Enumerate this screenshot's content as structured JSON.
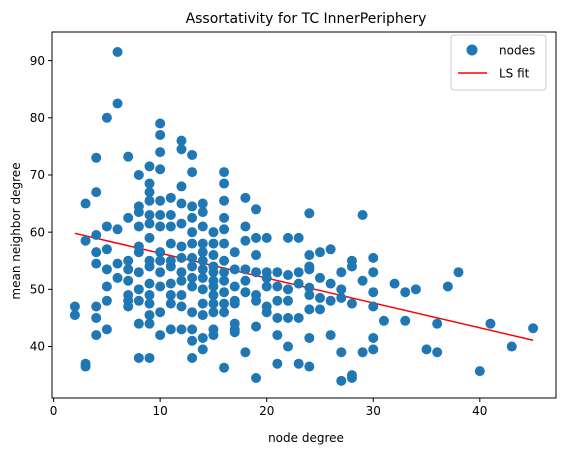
{
  "chart_data": {
    "type": "scatter",
    "title": "Assortativity for TC InnerPeriphery",
    "xlabel": "node degree",
    "ylabel": "mean neighbor degree",
    "xlim": [
      -0.15,
      47.15
    ],
    "ylim": [
      31,
      95
    ],
    "xticks": [
      0,
      10,
      20,
      30,
      40
    ],
    "yticks": [
      40,
      50,
      60,
      70,
      80,
      90
    ],
    "grid": false,
    "legend_position": "top-right",
    "colors": {
      "points": "#1f77b4",
      "fit": "#ff0000",
      "axis": "#000000"
    },
    "series": [
      {
        "name": "nodes",
        "type": "scatter",
        "points": [
          [
            2,
            47
          ],
          [
            2,
            45.5
          ],
          [
            3,
            65
          ],
          [
            3,
            58.5
          ],
          [
            3,
            37
          ],
          [
            3,
            36.5
          ],
          [
            4,
            73
          ],
          [
            4,
            67
          ],
          [
            4,
            59.5
          ],
          [
            4,
            56.5
          ],
          [
            4,
            54.5
          ],
          [
            4,
            47
          ],
          [
            4,
            45
          ],
          [
            4,
            42
          ],
          [
            5,
            80
          ],
          [
            5,
            61
          ],
          [
            5,
            57
          ],
          [
            5,
            53.5
          ],
          [
            5,
            50.5
          ],
          [
            5,
            48
          ],
          [
            5,
            43
          ],
          [
            6,
            91.5
          ],
          [
            6,
            82.5
          ],
          [
            6,
            60.5
          ],
          [
            6,
            54.5
          ],
          [
            6,
            52
          ],
          [
            7,
            73.2
          ],
          [
            7,
            62.5
          ],
          [
            7,
            55
          ],
          [
            7,
            53.5
          ],
          [
            7,
            51.5
          ],
          [
            7,
            49
          ],
          [
            7,
            48
          ],
          [
            7,
            47
          ],
          [
            8,
            70
          ],
          [
            8,
            64.5
          ],
          [
            8,
            63.5
          ],
          [
            8,
            61
          ],
          [
            8,
            57.5
          ],
          [
            8,
            56.5
          ],
          [
            8,
            53
          ],
          [
            8,
            50
          ],
          [
            8,
            48
          ],
          [
            8,
            44
          ],
          [
            8,
            38
          ],
          [
            9,
            71.5
          ],
          [
            9,
            68.5
          ],
          [
            9,
            67
          ],
          [
            9,
            65.5
          ],
          [
            9,
            63
          ],
          [
            9,
            61.5
          ],
          [
            9,
            59
          ],
          [
            9,
            55
          ],
          [
            9,
            54
          ],
          [
            9,
            51
          ],
          [
            9,
            49
          ],
          [
            9,
            47.5
          ],
          [
            9,
            45.5
          ],
          [
            9,
            44
          ],
          [
            9,
            38
          ],
          [
            10,
            79
          ],
          [
            10,
            77
          ],
          [
            10,
            74
          ],
          [
            10,
            71
          ],
          [
            10,
            65.5
          ],
          [
            10,
            63
          ],
          [
            10,
            61
          ],
          [
            10,
            56.5
          ],
          [
            10,
            55
          ],
          [
            10,
            53
          ],
          [
            10,
            50.5
          ],
          [
            10,
            46
          ],
          [
            10,
            42
          ],
          [
            11,
            66
          ],
          [
            11,
            63
          ],
          [
            11,
            61
          ],
          [
            11,
            58
          ],
          [
            11,
            55
          ],
          [
            11,
            54
          ],
          [
            11,
            51
          ],
          [
            11,
            49
          ],
          [
            11,
            47.5
          ],
          [
            11,
            43
          ],
          [
            12,
            76
          ],
          [
            12,
            74.5
          ],
          [
            12,
            68
          ],
          [
            12,
            65
          ],
          [
            12,
            61.5
          ],
          [
            12,
            57.5
          ],
          [
            12,
            55.5
          ],
          [
            12,
            53
          ],
          [
            12,
            51.5
          ],
          [
            12,
            49
          ],
          [
            12,
            47
          ],
          [
            12,
            43
          ],
          [
            13,
            73.5
          ],
          [
            13,
            70.5
          ],
          [
            13,
            64.5
          ],
          [
            13,
            62.5
          ],
          [
            13,
            60
          ],
          [
            13,
            58
          ],
          [
            13,
            55.5
          ],
          [
            13,
            54
          ],
          [
            13,
            52
          ],
          [
            13,
            50.5
          ],
          [
            13,
            46
          ],
          [
            13,
            43
          ],
          [
            13,
            41
          ],
          [
            13,
            38
          ],
          [
            14,
            65
          ],
          [
            14,
            63.5
          ],
          [
            14,
            61
          ],
          [
            14,
            58
          ],
          [
            14,
            56.5
          ],
          [
            14,
            55
          ],
          [
            14,
            53.5
          ],
          [
            14,
            52
          ],
          [
            14,
            50
          ],
          [
            14,
            47.5
          ],
          [
            14,
            45.5
          ],
          [
            14,
            41.5
          ],
          [
            14,
            39.5
          ],
          [
            15,
            60
          ],
          [
            15,
            58
          ],
          [
            15,
            56
          ],
          [
            15,
            54
          ],
          [
            15,
            53
          ],
          [
            15,
            51.5
          ],
          [
            15,
            50.5
          ],
          [
            15,
            49
          ],
          [
            15,
            47.5
          ],
          [
            15,
            46
          ],
          [
            15,
            43
          ],
          [
            15,
            42
          ],
          [
            16,
            70.5
          ],
          [
            16,
            68.5
          ],
          [
            16,
            65.5
          ],
          [
            16,
            62.5
          ],
          [
            16,
            60.5
          ],
          [
            16,
            58
          ],
          [
            16,
            55
          ],
          [
            16,
            53
          ],
          [
            16,
            51.5
          ],
          [
            16,
            49.5
          ],
          [
            16,
            47.5
          ],
          [
            16,
            46
          ],
          [
            16,
            36.3
          ],
          [
            17,
            56.5
          ],
          [
            17,
            53.5
          ],
          [
            17,
            50.5
          ],
          [
            17,
            48
          ],
          [
            17,
            47.5
          ],
          [
            17,
            44
          ],
          [
            17,
            43
          ],
          [
            17,
            42.5
          ],
          [
            18,
            66
          ],
          [
            18,
            61
          ],
          [
            18,
            58.5
          ],
          [
            18,
            53.5
          ],
          [
            18,
            51.5
          ],
          [
            18,
            49.5
          ],
          [
            18,
            39
          ],
          [
            19,
            64
          ],
          [
            19,
            59
          ],
          [
            19,
            56
          ],
          [
            19,
            53
          ],
          [
            19,
            49
          ],
          [
            19,
            48
          ],
          [
            19,
            43.5
          ],
          [
            19,
            34.5
          ],
          [
            20,
            59
          ],
          [
            20,
            53
          ],
          [
            20,
            52
          ],
          [
            20,
            50.5
          ],
          [
            20,
            47
          ],
          [
            20,
            46
          ],
          [
            21,
            53
          ],
          [
            21,
            50.5
          ],
          [
            21,
            48
          ],
          [
            21,
            45
          ],
          [
            21,
            42
          ],
          [
            21,
            37
          ],
          [
            22,
            59
          ],
          [
            22,
            52.5
          ],
          [
            22,
            50
          ],
          [
            22,
            48
          ],
          [
            22,
            45
          ],
          [
            22,
            40
          ],
          [
            23,
            59
          ],
          [
            23,
            53
          ],
          [
            23,
            51
          ],
          [
            23,
            45
          ],
          [
            23,
            37
          ],
          [
            24,
            63.3
          ],
          [
            24,
            56
          ],
          [
            24,
            54
          ],
          [
            24,
            53.5
          ],
          [
            24,
            50.3
          ],
          [
            24,
            49
          ],
          [
            24,
            46.5
          ],
          [
            24,
            41.5
          ],
          [
            24,
            36.5
          ],
          [
            25,
            56.5
          ],
          [
            25,
            52
          ],
          [
            25,
            48.5
          ],
          [
            25,
            46.5
          ],
          [
            26,
            57
          ],
          [
            26,
            51
          ],
          [
            26,
            48
          ],
          [
            26,
            42
          ],
          [
            27,
            53
          ],
          [
            27,
            50
          ],
          [
            27,
            48.5
          ],
          [
            27,
            39
          ],
          [
            27,
            34
          ],
          [
            28,
            55
          ],
          [
            28,
            54
          ],
          [
            28,
            47.5
          ],
          [
            28,
            35
          ],
          [
            28,
            34.5
          ],
          [
            29,
            63
          ],
          [
            29,
            51.5
          ],
          [
            29,
            39
          ],
          [
            30,
            55.5
          ],
          [
            30,
            53
          ],
          [
            30,
            49.5
          ],
          [
            30,
            47
          ],
          [
            30,
            41.5
          ],
          [
            30,
            39.5
          ],
          [
            31,
            44.5
          ],
          [
            32,
            51
          ],
          [
            33,
            49.5
          ],
          [
            33,
            44.5
          ],
          [
            34,
            50
          ],
          [
            35,
            39.5
          ],
          [
            36,
            44
          ],
          [
            36,
            39
          ],
          [
            37,
            50.5
          ],
          [
            38,
            53
          ],
          [
            40,
            35.7
          ],
          [
            41,
            44
          ],
          [
            43,
            40
          ],
          [
            45,
            43.2
          ]
        ]
      },
      {
        "name": "LS fit",
        "type": "line",
        "x": [
          2,
          45
        ],
        "y": [
          59.8,
          41.1
        ]
      }
    ]
  }
}
